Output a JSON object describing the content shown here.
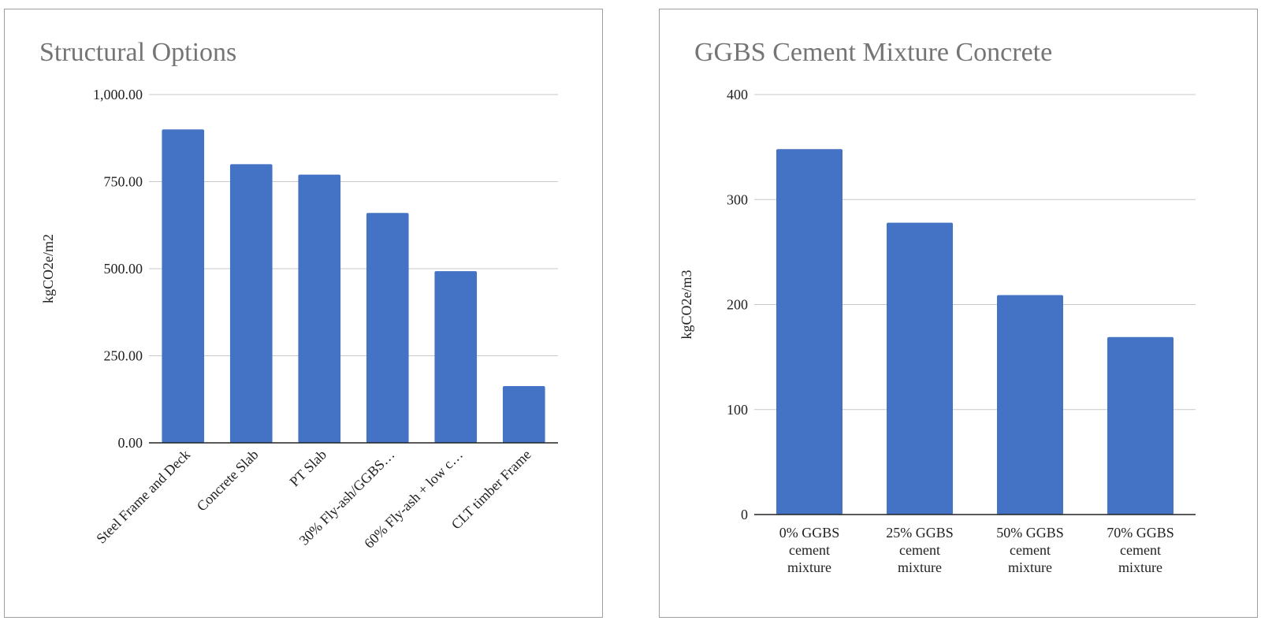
{
  "colors": {
    "bar": "#4472c4",
    "grid": "#c8c8c8",
    "axis": "#222222",
    "title": "#757575",
    "text": "#222222"
  },
  "chart_data": [
    {
      "type": "bar",
      "title": "Structural Options",
      "xlabel": "",
      "ylabel": "kgCO2e/m2",
      "categories": [
        "Steel Frame and Deck",
        "Concrete Slab",
        "PT Slab",
        "30% Fly-ash/GGBS…",
        "60% Fly-ash + low c…",
        "CLT timber Frame"
      ],
      "values": [
        900,
        800,
        770,
        660,
        493,
        163
      ],
      "ylim": [
        0,
        1000
      ],
      "yticks": [
        0,
        250,
        500,
        750,
        1000
      ],
      "ytick_labels": [
        "0.00",
        "250.00",
        "500.00",
        "750.00",
        "1,000.00"
      ],
      "grid": true,
      "legend": "none"
    },
    {
      "type": "bar",
      "title": "GGBS Cement Mixture Concrete",
      "xlabel": "",
      "ylabel": "kgCO2e/m3",
      "categories": [
        [
          "0% GGBS",
          "cement",
          "mixture"
        ],
        [
          "25% GGBS",
          "cement",
          "mixture"
        ],
        [
          "50% GGBS",
          "cement",
          "mixture"
        ],
        [
          "70% GGBS",
          "cement",
          "mixture"
        ]
      ],
      "values": [
        348,
        278,
        209,
        169
      ],
      "ylim": [
        0,
        400
      ],
      "yticks": [
        0,
        100,
        200,
        300,
        400
      ],
      "ytick_labels": [
        "0",
        "100",
        "200",
        "300",
        "400"
      ],
      "grid": true,
      "legend": "none"
    }
  ]
}
